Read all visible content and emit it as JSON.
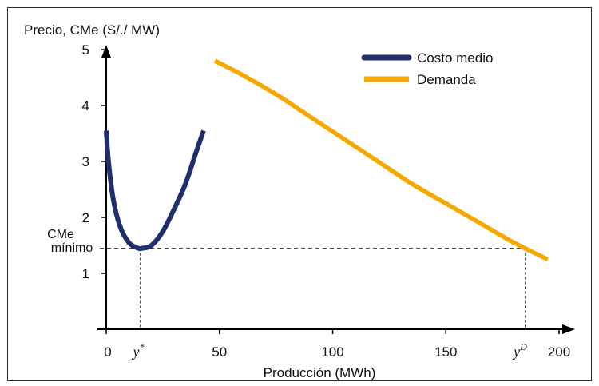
{
  "chart_data": {
    "type": "line",
    "ylabel": "Precio, CMe (S/./ MW)",
    "xlabel": "Producción (MWh)",
    "xlim": [
      0,
      200
    ],
    "ylim": [
      0,
      5
    ],
    "x_ticks": [
      "0",
      "50",
      "100",
      "150",
      "200"
    ],
    "x_tick_values": [
      0,
      50,
      100,
      150,
      200
    ],
    "y_ticks": [
      "1",
      "2",
      "3",
      "4",
      "5"
    ],
    "y_tick_values": [
      1,
      2,
      3,
      4,
      5
    ],
    "legend_position": "top-right",
    "series": [
      {
        "name": "Costo medio",
        "color": "#1f2f6b",
        "x": [
          0,
          1,
          3,
          6,
          10,
          14,
          16,
          20,
          25,
          30,
          35,
          40,
          43
        ],
        "y": [
          3.55,
          3.0,
          2.35,
          1.85,
          1.55,
          1.45,
          1.45,
          1.5,
          1.75,
          2.15,
          2.6,
          3.2,
          3.55
        ]
      },
      {
        "name": "Demanda",
        "color": "#f5a800",
        "x": [
          48,
          60,
          75,
          90,
          105,
          120,
          135,
          150,
          165,
          180,
          195
        ],
        "y": [
          4.8,
          4.55,
          4.2,
          3.8,
          3.4,
          3.0,
          2.6,
          2.25,
          1.9,
          1.55,
          1.25
        ]
      }
    ],
    "annotations": {
      "cme_min_line1": "CMe",
      "cme_min_line2": "mínimo",
      "cme_min_value": 1.45,
      "ystar_label": "y",
      "ystar_sup": "*",
      "ystar_x": 15,
      "yd_label": "y",
      "yd_sup": "D",
      "yd_x": 185
    }
  }
}
